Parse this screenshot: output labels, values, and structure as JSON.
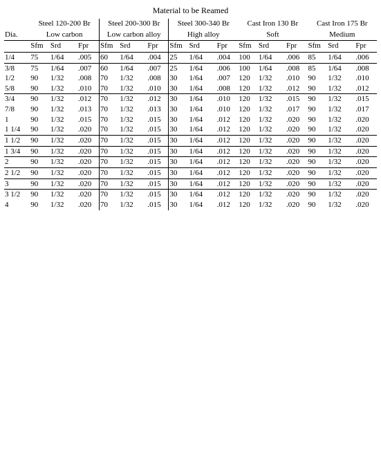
{
  "title": "Material to be Reamed",
  "groups": [
    {
      "line1": "Steel 120-200 Br",
      "line2": "Low carbon"
    },
    {
      "line1": "Steel 200-300 Br",
      "line2": "Low carbon alloy"
    },
    {
      "line1": "Steel 300-340 Br",
      "line2": "High alloy"
    },
    {
      "line1": "Cast Iron 130 Br",
      "line2": "Soft"
    },
    {
      "line1": "Cast Iron 175 Br",
      "line2": "Medium"
    }
  ],
  "dia_label": "Dia.",
  "col_labels": {
    "sfm": "Sfm",
    "srd": "Srd",
    "fpr": "Fpr"
  },
  "rows": [
    {
      "dia": "1/4",
      "a": {
        "sfm": "75",
        "srd": "1/64",
        "fpr": ".005"
      },
      "b": {
        "sfm": "60",
        "srd": "1/64",
        "fpr": ".004"
      },
      "c": {
        "sfm": "25",
        "srd": "1/64",
        "fpr": ".004"
      },
      "d": {
        "sfm": "100",
        "srd": "1/64",
        "fpr": ".006"
      },
      "e": {
        "sfm": "85",
        "srd": "1/64",
        "fpr": ".006"
      },
      "hline": true
    },
    {
      "dia": "3/8",
      "a": {
        "sfm": "75",
        "srd": "1/64",
        "fpr": ".007"
      },
      "b": {
        "sfm": "60",
        "srd": "1/64",
        "fpr": ".007"
      },
      "c": {
        "sfm": "25",
        "srd": "1/64",
        "fpr": ".006"
      },
      "d": {
        "sfm": "100",
        "srd": "1/64",
        "fpr": ".008"
      },
      "e": {
        "sfm": "85",
        "srd": "1/64",
        "fpr": ".008"
      },
      "hline": true
    },
    {
      "dia": "1/2",
      "a": {
        "sfm": "90",
        "srd": "1/32",
        "fpr": ".008"
      },
      "b": {
        "sfm": "70",
        "srd": "1/32",
        "fpr": ".008"
      },
      "c": {
        "sfm": "30",
        "srd": "1/64",
        "fpr": ".007"
      },
      "d": {
        "sfm": "120",
        "srd": "1/32",
        "fpr": ".010"
      },
      "e": {
        "sfm": "90",
        "srd": "1/32",
        "fpr": ".010"
      }
    },
    {
      "dia": "5/8",
      "a": {
        "sfm": "90",
        "srd": "1/32",
        "fpr": ".010"
      },
      "b": {
        "sfm": "70",
        "srd": "1/32",
        "fpr": ".010"
      },
      "c": {
        "sfm": "30",
        "srd": "1/64",
        "fpr": ".008"
      },
      "d": {
        "sfm": "120",
        "srd": "1/32",
        "fpr": ".012"
      },
      "e": {
        "sfm": "90",
        "srd": "1/32",
        "fpr": ".012"
      }
    },
    {
      "dia": "3/4",
      "a": {
        "sfm": "90",
        "srd": "1/32",
        "fpr": ".012"
      },
      "b": {
        "sfm": "70",
        "srd": "1/32",
        "fpr": ".012"
      },
      "c": {
        "sfm": "30",
        "srd": "1/64",
        "fpr": ".010"
      },
      "d": {
        "sfm": "120",
        "srd": "1/32",
        "fpr": ".015"
      },
      "e": {
        "sfm": "90",
        "srd": "1/32",
        "fpr": ".015"
      },
      "hline": true
    },
    {
      "dia": "7/8",
      "a": {
        "sfm": "90",
        "srd": "1/32",
        "fpr": ".013"
      },
      "b": {
        "sfm": "70",
        "srd": "1/32",
        "fpr": ".013"
      },
      "c": {
        "sfm": "30",
        "srd": "1/64",
        "fpr": ".010"
      },
      "d": {
        "sfm": "120",
        "srd": "1/32",
        "fpr": ".017"
      },
      "e": {
        "sfm": "90",
        "srd": "1/32",
        "fpr": ".017"
      }
    },
    {
      "dia": "1",
      "a": {
        "sfm": "90",
        "srd": "1/32",
        "fpr": ".015"
      },
      "b": {
        "sfm": "70",
        "srd": "1/32",
        "fpr": ".015"
      },
      "c": {
        "sfm": "30",
        "srd": "1/64",
        "fpr": ".012"
      },
      "d": {
        "sfm": "120",
        "srd": "1/32",
        "fpr": ".020"
      },
      "e": {
        "sfm": "90",
        "srd": "1/32",
        "fpr": ".020"
      }
    },
    {
      "dia": "1 1/4",
      "a": {
        "sfm": "90",
        "srd": "1/32",
        "fpr": ".020"
      },
      "b": {
        "sfm": "70",
        "srd": "1/32",
        "fpr": ".015"
      },
      "c": {
        "sfm": "30",
        "srd": "1/64",
        "fpr": ".012"
      },
      "d": {
        "sfm": "120",
        "srd": "1/32",
        "fpr": ".020"
      },
      "e": {
        "sfm": "90",
        "srd": "1/32",
        "fpr": ".020"
      }
    },
    {
      "dia": "1 1/2",
      "a": {
        "sfm": "90",
        "srd": "1/32",
        "fpr": ".020"
      },
      "b": {
        "sfm": "70",
        "srd": "1/32",
        "fpr": ".015"
      },
      "c": {
        "sfm": "30",
        "srd": "1/64",
        "fpr": ".012"
      },
      "d": {
        "sfm": "120",
        "srd": "1/32",
        "fpr": ".020"
      },
      "e": {
        "sfm": "90",
        "srd": "1/32",
        "fpr": ".020"
      },
      "hline": true
    },
    {
      "dia": "1 3/4",
      "a": {
        "sfm": "90",
        "srd": "1/32",
        "fpr": ".020"
      },
      "b": {
        "sfm": "70",
        "srd": "1/32",
        "fpr": ".015"
      },
      "c": {
        "sfm": "30",
        "srd": "1/64",
        "fpr": ".012"
      },
      "d": {
        "sfm": "120",
        "srd": "1/32",
        "fpr": ".020"
      },
      "e": {
        "sfm": "90",
        "srd": "1/32",
        "fpr": ".020"
      },
      "hline": true
    },
    {
      "dia": "2",
      "a": {
        "sfm": "90",
        "srd": "1/32",
        "fpr": ".020"
      },
      "b": {
        "sfm": "70",
        "srd": "1/32",
        "fpr": ".015"
      },
      "c": {
        "sfm": "30",
        "srd": "1/64",
        "fpr": ".012"
      },
      "d": {
        "sfm": "120",
        "srd": "1/32",
        "fpr": ".020"
      },
      "e": {
        "sfm": "90",
        "srd": "1/32",
        "fpr": ".020"
      },
      "hline": true
    },
    {
      "dia": "2 1/2",
      "a": {
        "sfm": "90",
        "srd": "1/32",
        "fpr": ".020"
      },
      "b": {
        "sfm": "70",
        "srd": "1/32",
        "fpr": ".015"
      },
      "c": {
        "sfm": "30",
        "srd": "1/64",
        "fpr": ".012"
      },
      "d": {
        "sfm": "120",
        "srd": "1/32",
        "fpr": ".020"
      },
      "e": {
        "sfm": "90",
        "srd": "1/32",
        "fpr": ".020"
      },
      "hline": true
    },
    {
      "dia": "3",
      "a": {
        "sfm": "90",
        "srd": "1/32",
        "fpr": ".020"
      },
      "b": {
        "sfm": "70",
        "srd": "1/32",
        "fpr": ".015"
      },
      "c": {
        "sfm": "30",
        "srd": "1/64",
        "fpr": ".012"
      },
      "d": {
        "sfm": "120",
        "srd": "1/32",
        "fpr": ".020"
      },
      "e": {
        "sfm": "90",
        "srd": "1/32",
        "fpr": ".020"
      },
      "hline": true
    },
    {
      "dia": "3 1/2",
      "a": {
        "sfm": "90",
        "srd": "1/32",
        "fpr": ".020"
      },
      "b": {
        "sfm": "70",
        "srd": "1/32",
        "fpr": ".015"
      },
      "c": {
        "sfm": "30",
        "srd": "1/64",
        "fpr": ".012"
      },
      "d": {
        "sfm": "120",
        "srd": "1/32",
        "fpr": ".020"
      },
      "e": {
        "sfm": "90",
        "srd": "1/32",
        "fpr": ".020"
      },
      "hline": true
    },
    {
      "dia": "4",
      "a": {
        "sfm": "90",
        "srd": "1/32",
        "fpr": ".020"
      },
      "b": {
        "sfm": "70",
        "srd": "1/32",
        "fpr": ".015"
      },
      "c": {
        "sfm": "30",
        "srd": "1/64",
        "fpr": ".012"
      },
      "d": {
        "sfm": "120",
        "srd": "1/32",
        "fpr": ".020"
      },
      "e": {
        "sfm": "90",
        "srd": "1/32",
        "fpr": ".020"
      }
    }
  ]
}
